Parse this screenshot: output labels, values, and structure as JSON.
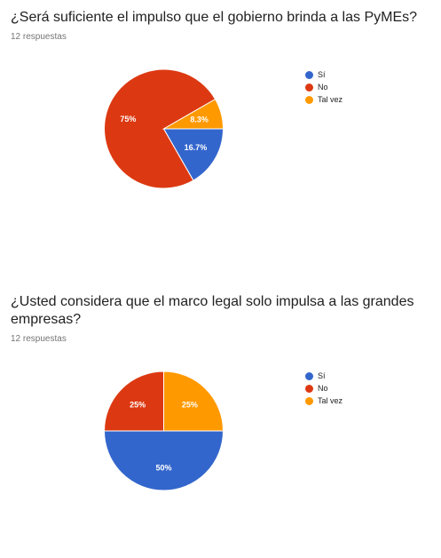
{
  "chart_data": [
    {
      "type": "pie",
      "title": "¿Será suficiente el impulso que el gobierno brinda a las PyMEs?",
      "subtitle": "12 respuestas",
      "categories": [
        "Sí",
        "No",
        "Tal vez"
      ],
      "values": [
        16.7,
        75,
        8.3
      ],
      "data_labels": [
        "16.7%",
        "75%",
        "8.3%"
      ],
      "colors": [
        "#3366cc",
        "#dc3912",
        "#ff9900"
      ],
      "legend": "right"
    },
    {
      "type": "pie",
      "title": "¿Usted considera que el marco legal solo impulsa a las grandes empresas?",
      "subtitle": "12 respuestas",
      "categories": [
        "Sí",
        "No",
        "Tal vez"
      ],
      "values": [
        50,
        25,
        25
      ],
      "data_labels": [
        "50%",
        "25%",
        "25%"
      ],
      "colors": [
        "#3366cc",
        "#dc3912",
        "#ff9900"
      ],
      "legend": "right"
    }
  ]
}
